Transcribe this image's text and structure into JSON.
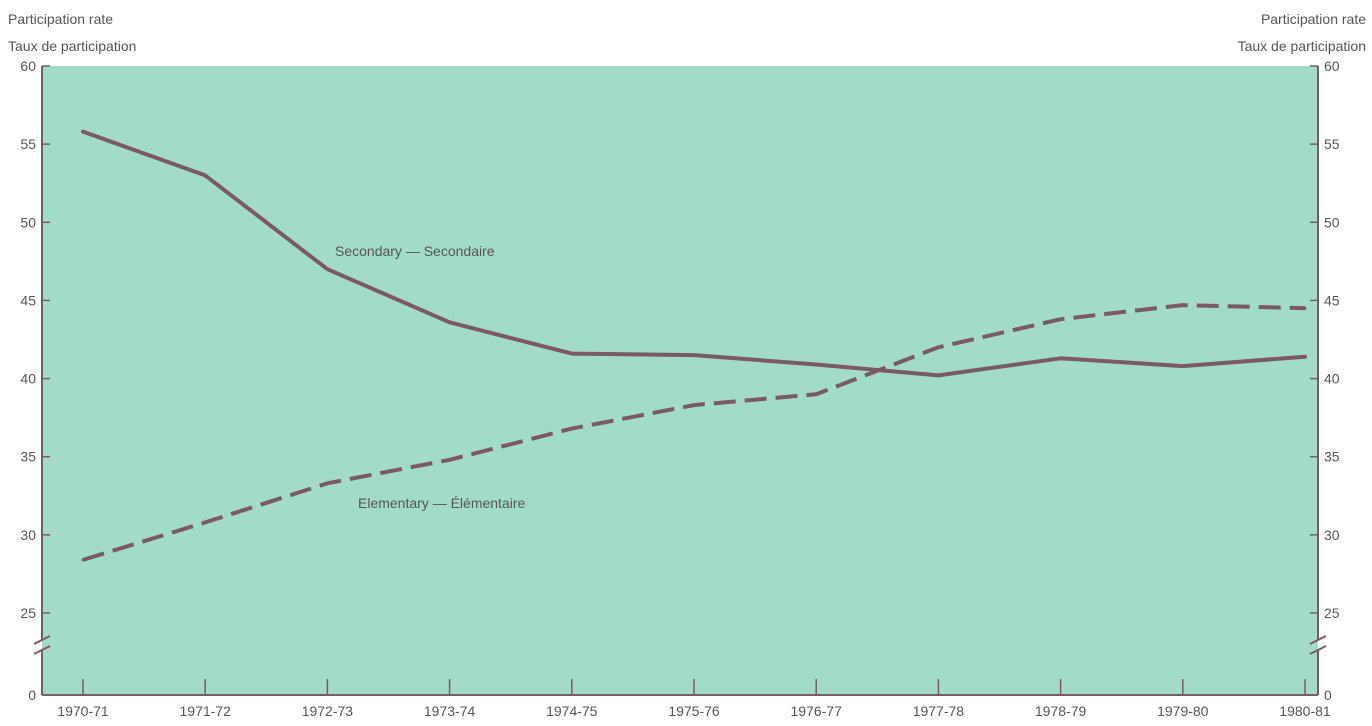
{
  "colors": {
    "plot_background": "#a3dbc9",
    "series_line": "#7a5a66",
    "tick_text": "#555555"
  },
  "chart_data": {
    "type": "line",
    "ylabel_left": [
      "Participation rate",
      "Taux de participation"
    ],
    "ylabel_right": [
      "Participation rate",
      "Taux de participation"
    ],
    "y_ticks": [
      0,
      25,
      30,
      35,
      40,
      45,
      50,
      55,
      60
    ],
    "ylim": [
      25,
      60
    ],
    "axis_break": true,
    "grid": false,
    "categories": [
      "1970-71",
      "1971-72",
      "1972-73",
      "1973-74",
      "1974-75",
      "1975-76",
      "1976-77",
      "1977-78",
      "1978-79",
      "1979-80",
      "1980-81"
    ],
    "series": [
      {
        "name": "Secondary — Secondaire",
        "style": "solid",
        "values": [
          55.8,
          53.0,
          47.0,
          43.6,
          41.6,
          41.5,
          40.9,
          40.2,
          41.3,
          40.8,
          41.4
        ]
      },
      {
        "name": "Elementary — Élémentaire",
        "style": "dashed",
        "values": [
          28.4,
          30.8,
          33.3,
          34.8,
          36.8,
          38.3,
          39.0,
          42.0,
          43.8,
          44.7,
          44.5
        ]
      }
    ]
  }
}
